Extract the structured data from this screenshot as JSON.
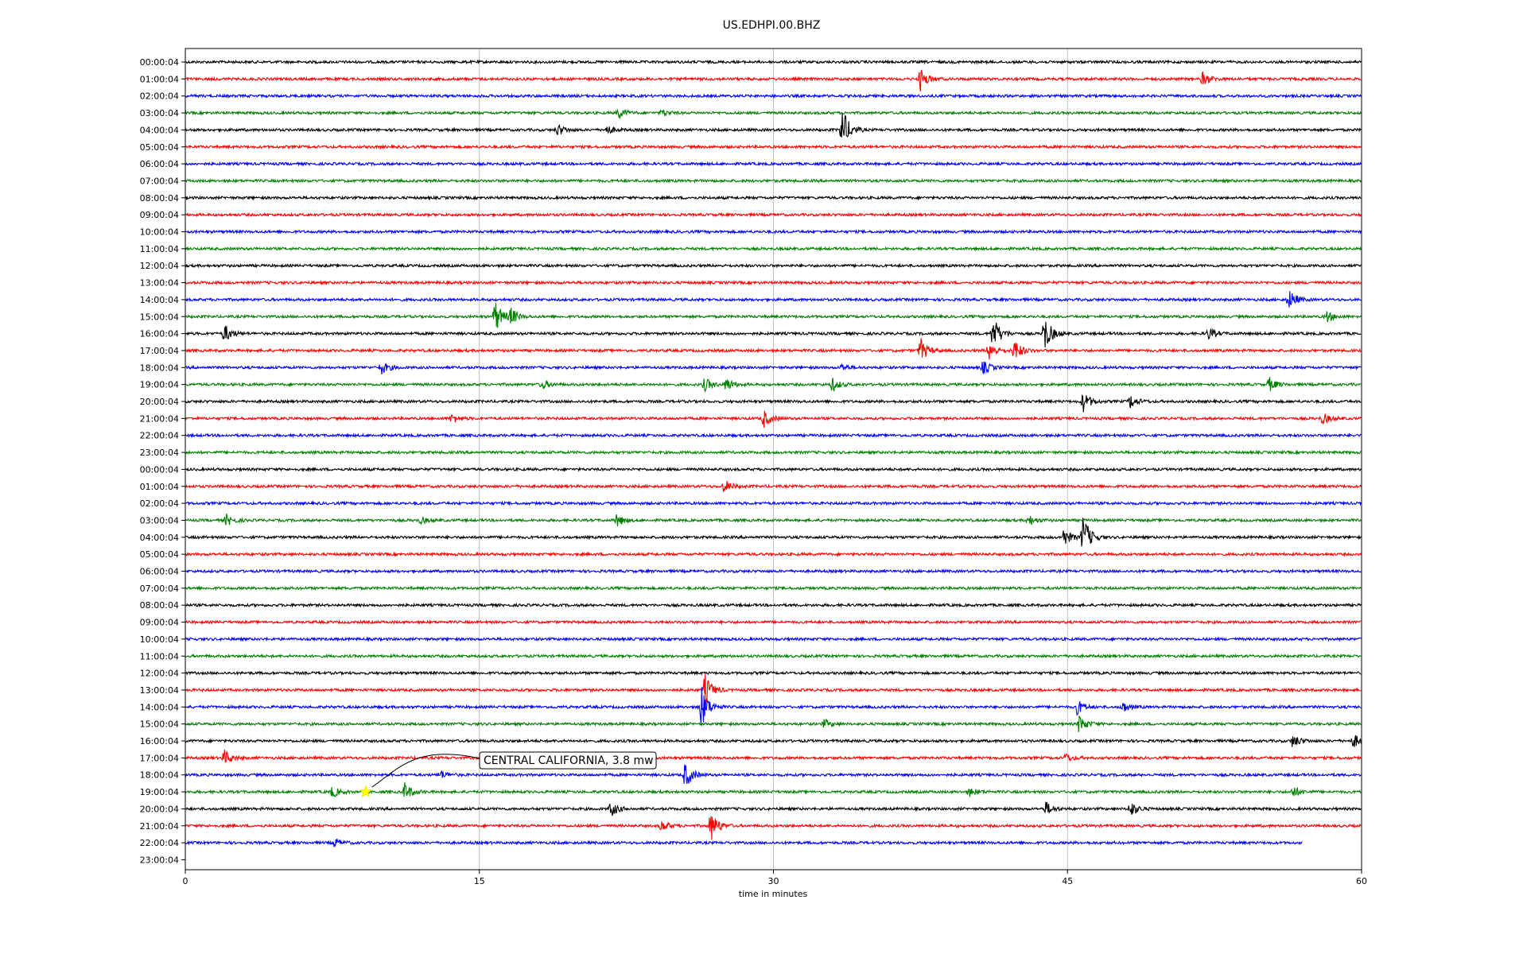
{
  "chart_data": {
    "type": "line",
    "title": "US.EDHPI.00.BHZ",
    "xlabel": "time in minutes",
    "xlim": [
      0,
      60
    ],
    "x_ticks": [
      "0",
      "15",
      "30",
      "45",
      "60"
    ],
    "grid": "vertical lines at 15, 30, 45",
    "trace_colors": [
      "#000000",
      "#ff0000",
      "#0000ff",
      "#008000"
    ],
    "row_labels": [
      "00:00:04",
      "01:00:04",
      "02:00:04",
      "03:00:04",
      "04:00:04",
      "05:00:04",
      "06:00:04",
      "07:00:04",
      "08:00:04",
      "09:00:04",
      "10:00:04",
      "11:00:04",
      "12:00:04",
      "13:00:04",
      "14:00:04",
      "15:00:04",
      "16:00:04",
      "17:00:04",
      "18:00:04",
      "19:00:04",
      "20:00:04",
      "21:00:04",
      "22:00:04",
      "23:00:04",
      "00:00:04",
      "01:00:04",
      "02:00:04",
      "03:00:04",
      "04:00:04",
      "05:00:04",
      "06:00:04",
      "07:00:04",
      "08:00:04",
      "09:00:04",
      "10:00:04",
      "11:00:04",
      "12:00:04",
      "13:00:04",
      "14:00:04",
      "15:00:04",
      "16:00:04",
      "17:00:04",
      "18:00:04",
      "19:00:04",
      "20:00:04",
      "21:00:04",
      "22:00:04",
      "23:00:04"
    ],
    "last_trace_end_minute": 57,
    "events": [
      {
        "row": 1,
        "minute": 37.5,
        "amp": 1.0
      },
      {
        "row": 1,
        "minute": 51.9,
        "amp": 0.6
      },
      {
        "row": 3,
        "minute": 22.1,
        "amp": 0.5
      },
      {
        "row": 3,
        "minute": 24.3,
        "amp": 0.3
      },
      {
        "row": 4,
        "minute": 19.0,
        "amp": 0.5
      },
      {
        "row": 4,
        "minute": 21.5,
        "amp": 0.4
      },
      {
        "row": 4,
        "minute": 33.5,
        "amp": 2.0
      },
      {
        "row": 14,
        "minute": 56.3,
        "amp": 0.9
      },
      {
        "row": 15,
        "minute": 15.8,
        "amp": 1.5
      },
      {
        "row": 15,
        "minute": 16.6,
        "amp": 0.7
      },
      {
        "row": 15,
        "minute": 58.2,
        "amp": 0.5
      },
      {
        "row": 16,
        "minute": 2.0,
        "amp": 0.8
      },
      {
        "row": 16,
        "minute": 41.2,
        "amp": 1.6
      },
      {
        "row": 16,
        "minute": 43.8,
        "amp": 1.8
      },
      {
        "row": 16,
        "minute": 52.2,
        "amp": 0.5
      },
      {
        "row": 17,
        "minute": 37.5,
        "amp": 1.1
      },
      {
        "row": 17,
        "minute": 41.0,
        "amp": 0.9
      },
      {
        "row": 17,
        "minute": 42.3,
        "amp": 1.0
      },
      {
        "row": 18,
        "minute": 10.0,
        "amp": 0.6
      },
      {
        "row": 18,
        "minute": 40.7,
        "amp": 0.6
      },
      {
        "row": 18,
        "minute": 33.5,
        "amp": 0.3
      },
      {
        "row": 19,
        "minute": 18.2,
        "amp": 0.4
      },
      {
        "row": 19,
        "minute": 26.5,
        "amp": 0.6
      },
      {
        "row": 19,
        "minute": 27.6,
        "amp": 0.6
      },
      {
        "row": 19,
        "minute": 33.0,
        "amp": 0.6
      },
      {
        "row": 19,
        "minute": 55.3,
        "amp": 0.6
      },
      {
        "row": 20,
        "minute": 45.8,
        "amp": 0.9
      },
      {
        "row": 20,
        "minute": 48.2,
        "amp": 0.6
      },
      {
        "row": 21,
        "minute": 13.6,
        "amp": 0.4
      },
      {
        "row": 21,
        "minute": 29.5,
        "amp": 0.8
      },
      {
        "row": 21,
        "minute": 58.0,
        "amp": 0.5
      },
      {
        "row": 25,
        "minute": 27.5,
        "amp": 0.6
      },
      {
        "row": 27,
        "minute": 2.1,
        "amp": 0.5
      },
      {
        "row": 27,
        "minute": 12.0,
        "amp": 0.3
      },
      {
        "row": 27,
        "minute": 22.0,
        "amp": 0.6
      },
      {
        "row": 27,
        "minute": 43.0,
        "amp": 0.5
      },
      {
        "row": 28,
        "minute": 45.8,
        "amp": 2.0
      },
      {
        "row": 28,
        "minute": 44.8,
        "amp": 0.8
      },
      {
        "row": 37,
        "minute": 26.5,
        "amp": 1.4
      },
      {
        "row": 38,
        "minute": 26.3,
        "amp": 2.0
      },
      {
        "row": 38,
        "minute": 45.5,
        "amp": 0.7
      },
      {
        "row": 38,
        "minute": 47.8,
        "amp": 0.5
      },
      {
        "row": 39,
        "minute": 45.6,
        "amp": 0.8
      },
      {
        "row": 39,
        "minute": 32.6,
        "amp": 0.4
      },
      {
        "row": 40,
        "minute": 56.5,
        "amp": 0.6
      },
      {
        "row": 40,
        "minute": 59.6,
        "amp": 0.6
      },
      {
        "row": 41,
        "minute": 2.0,
        "amp": 0.7
      },
      {
        "row": 41,
        "minute": 44.9,
        "amp": 0.4
      },
      {
        "row": 42,
        "minute": 25.5,
        "amp": 1.2
      },
      {
        "row": 42,
        "minute": 13.0,
        "amp": 0.4
      },
      {
        "row": 43,
        "minute": 11.2,
        "amp": 0.8
      },
      {
        "row": 43,
        "minute": 7.5,
        "amp": 0.5
      },
      {
        "row": 43,
        "minute": 56.5,
        "amp": 0.5
      },
      {
        "row": 43,
        "minute": 40.0,
        "amp": 0.4
      },
      {
        "row": 44,
        "minute": 21.7,
        "amp": 0.7
      },
      {
        "row": 44,
        "minute": 43.9,
        "amp": 0.6
      },
      {
        "row": 44,
        "minute": 48.2,
        "amp": 0.7
      },
      {
        "row": 45,
        "minute": 26.8,
        "amp": 1.4
      },
      {
        "row": 45,
        "minute": 24.3,
        "amp": 0.5
      },
      {
        "row": 46,
        "minute": 7.6,
        "amp": 0.4
      }
    ],
    "annotation": {
      "text": "CENTRAL CALIFORNIA, 3.8 mw",
      "row": 43,
      "minute": 9.2,
      "marker": "star",
      "marker_color": "#ffff00"
    }
  }
}
